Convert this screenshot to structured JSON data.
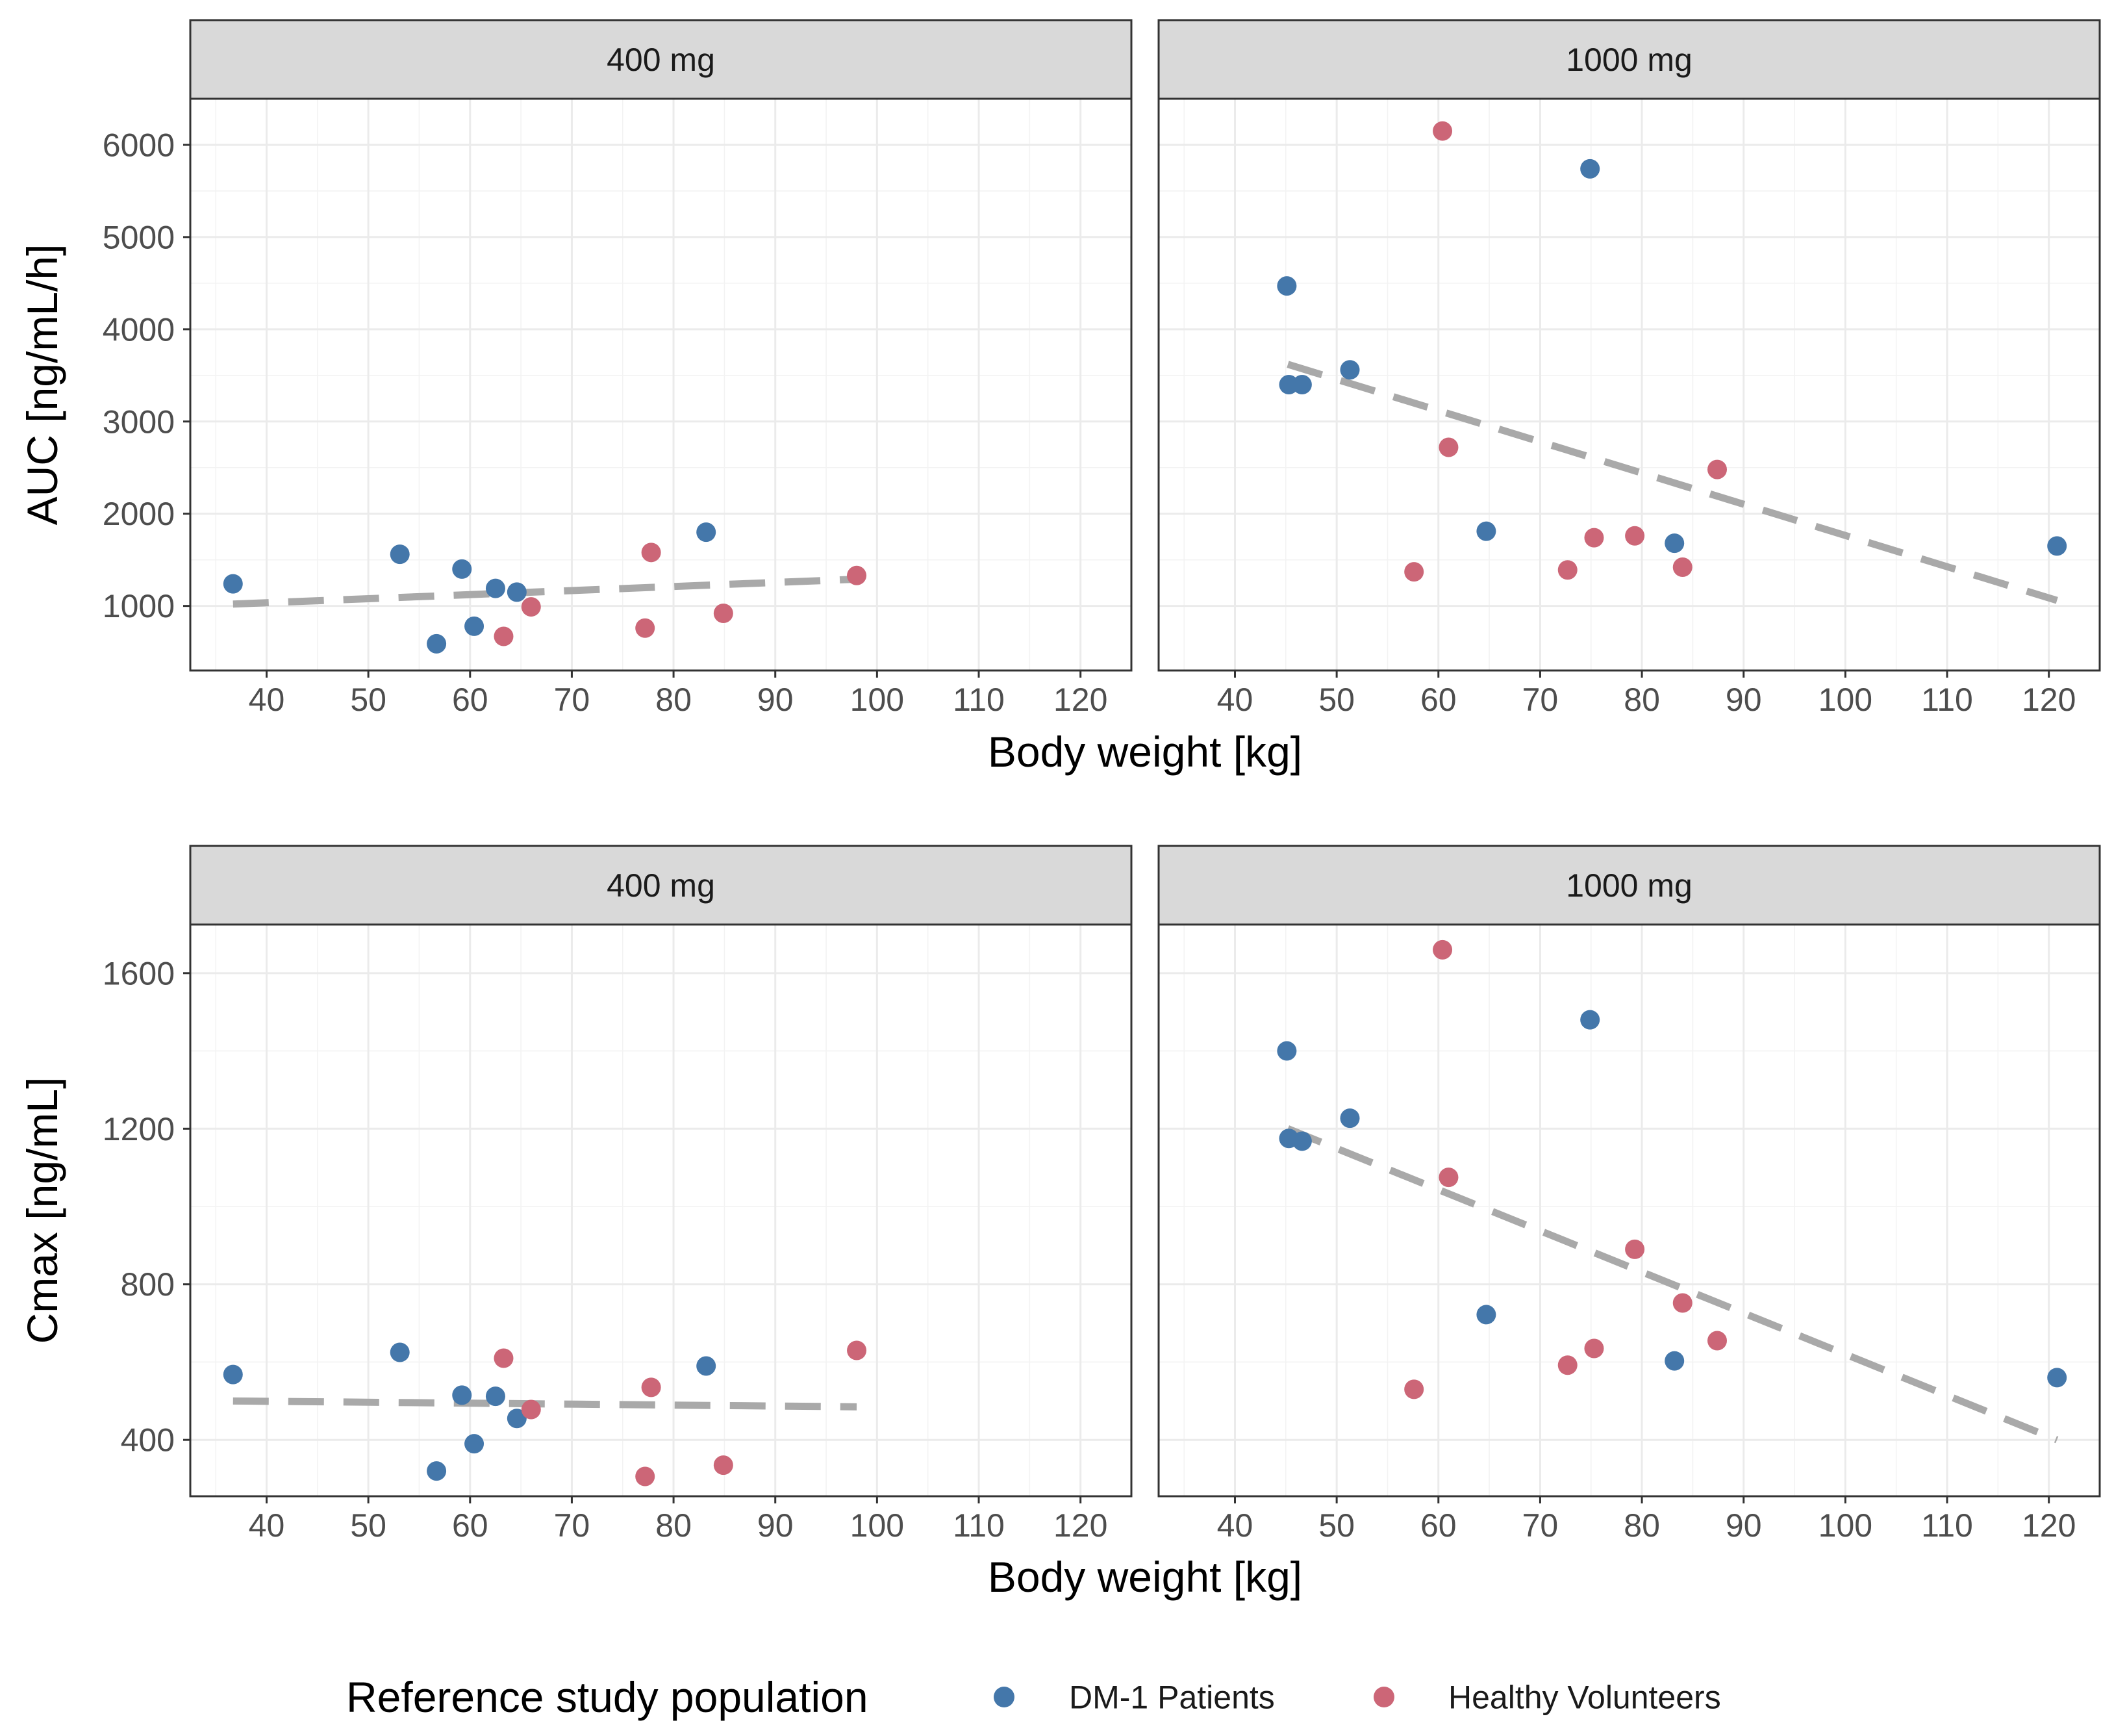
{
  "chart_data": [
    {
      "type": "scatter",
      "row": 1,
      "ylabel": "AUC [ng/mL/h]",
      "xlabel": "Body weight [kg]",
      "xlim": [
        32.5,
        125
      ],
      "xticks": [
        40,
        50,
        60,
        70,
        80,
        90,
        100,
        110,
        120
      ],
      "xtick_labels": [
        "40",
        "50",
        "60",
        "70",
        "80",
        "90",
        "100",
        "110",
        "120"
      ],
      "ylim": [
        300,
        6500
      ],
      "yticks": [
        1000,
        2000,
        3000,
        4000,
        5000,
        6000
      ],
      "ytick_labels": [
        "1000",
        "2000",
        "3000",
        "4000",
        "5000",
        "6000"
      ],
      "ygrid_minor": [
        1500,
        2500,
        3500,
        4500,
        5500
      ],
      "panels": [
        {
          "strip": "400 mg",
          "trend": {
            "x": [
              36.7,
              98.0
            ],
            "y": [
              1020,
              1290
            ]
          },
          "series": [
            {
              "name": "DM-1 Patients",
              "x": [
                36.7,
                53.1,
                56.7,
                59.2,
                60.4,
                62.5,
                64.6,
                83.2
              ],
              "y": [
                1240,
                1560,
                590,
                1400,
                780,
                1190,
                1150,
                1800
              ]
            },
            {
              "name": "Healthy Volunteers",
              "x": [
                63.3,
                66.0,
                77.2,
                77.8,
                84.9,
                98.0
              ],
              "y": [
                670,
                990,
                760,
                1580,
                920,
                1330
              ]
            }
          ]
        },
        {
          "strip": "1000 mg",
          "trend": {
            "x": [
              45.2,
              120.8
            ],
            "y": [
              3620,
              1060
            ]
          },
          "series": [
            {
              "name": "DM-1 Patients",
              "x": [
                45.1,
                45.3,
                46.6,
                51.3,
                64.7,
                74.9,
                83.2,
                120.8
              ],
              "y": [
                4470,
                3400,
                3400,
                3560,
                1810,
                5740,
                1680,
                1650
              ]
            },
            {
              "name": "Healthy Volunteers",
              "x": [
                57.6,
                60.4,
                61.0,
                72.7,
                75.3,
                79.3,
                84.0,
                87.4
              ],
              "y": [
                1370,
                6150,
                2720,
                1390,
                1740,
                1760,
                1420,
                2480
              ]
            }
          ]
        }
      ]
    },
    {
      "type": "scatter",
      "row": 2,
      "ylabel": "Cmax [ng/mL]",
      "xlabel": "Body weight [kg]",
      "xlim": [
        32.5,
        125
      ],
      "xticks": [
        40,
        50,
        60,
        70,
        80,
        90,
        100,
        110,
        120
      ],
      "xtick_labels": [
        "40",
        "50",
        "60",
        "70",
        "80",
        "90",
        "100",
        "110",
        "120"
      ],
      "ylim": [
        255,
        1725
      ],
      "yticks": [
        400,
        800,
        1200,
        1600
      ],
      "ytick_labels": [
        "400",
        "800",
        "1200",
        "1600"
      ],
      "ygrid_minor": [
        600,
        1000,
        1400
      ],
      "panels": [
        {
          "strip": "400 mg",
          "trend": {
            "x": [
              36.7,
              98.0
            ],
            "y": [
              500,
              485
            ]
          },
          "series": [
            {
              "name": "DM-1 Patients",
              "x": [
                36.7,
                53.1,
                56.7,
                59.2,
                60.4,
                62.5,
                64.6,
                83.2
              ],
              "y": [
                568,
                625,
                320,
                515,
                390,
                512,
                455,
                590
              ]
            },
            {
              "name": "Healthy Volunteers",
              "x": [
                63.3,
                66.0,
                77.2,
                77.8,
                84.9,
                98.0
              ],
              "y": [
                610,
                478,
                306,
                535,
                335,
                630
              ]
            }
          ]
        },
        {
          "strip": "1000 mg",
          "trend": {
            "x": [
              45.2,
              120.8
            ],
            "y": [
              1200,
              400
            ]
          },
          "series": [
            {
              "name": "DM-1 Patients",
              "x": [
                45.1,
                45.3,
                46.6,
                51.3,
                64.7,
                74.9,
                83.2,
                120.8
              ],
              "y": [
                1400,
                1175,
                1168,
                1227,
                722,
                1480,
                603,
                560
              ]
            },
            {
              "name": "Healthy Volunteers",
              "x": [
                57.6,
                60.4,
                61.0,
                72.7,
                75.3,
                79.3,
                84.0,
                87.4
              ],
              "y": [
                530,
                1660,
                1075,
                592,
                635,
                890,
                752,
                655
              ]
            }
          ]
        }
      ]
    }
  ],
  "legend": {
    "title": "Reference study population",
    "position": "bottom",
    "items": [
      {
        "label": "DM-1 Patients",
        "color": "#4477aa"
      },
      {
        "label": "Healthy Volunteers",
        "color": "#cc6677"
      }
    ]
  }
}
